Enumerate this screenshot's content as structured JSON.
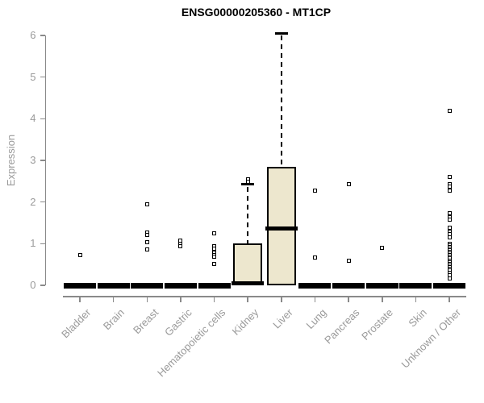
{
  "chart_data": {
    "type": "boxplot",
    "title": "ENSG00000205360 - MT1CP",
    "xlabel": "",
    "ylabel": "Expression",
    "ylim": [
      0,
      6
    ],
    "yticks": [
      0,
      1,
      2,
      3,
      4,
      5,
      6
    ],
    "grid": false,
    "legend": "none",
    "categories": [
      "Bladder",
      "Brain",
      "Breast",
      "Gastric",
      "Hematopoietic cells",
      "Kidney",
      "Liver",
      "Lung",
      "Pancreas",
      "Prostate",
      "Skin",
      "Unknown / Other"
    ],
    "series": [
      {
        "label": "Bladder",
        "stats": {
          "whisker_low": 0,
          "q1": 0,
          "median": 0,
          "q3": 0,
          "whisker_high": 0
        },
        "outliers": [
          0.72
        ]
      },
      {
        "label": "Brain",
        "stats": {
          "whisker_low": 0,
          "q1": 0,
          "median": 0,
          "q3": 0,
          "whisker_high": 0
        },
        "outliers": []
      },
      {
        "label": "Breast",
        "stats": {
          "whisker_low": 0,
          "q1": 0,
          "median": 0,
          "q3": 0,
          "whisker_high": 0
        },
        "outliers": [
          1.95,
          1.27,
          1.21,
          1.04,
          0.86
        ]
      },
      {
        "label": "Gastric",
        "stats": {
          "whisker_low": 0,
          "q1": 0,
          "median": 0,
          "q3": 0,
          "whisker_high": 0
        },
        "outliers": [
          1.07,
          1.0,
          0.94
        ]
      },
      {
        "label": "Hematopoietic cells",
        "stats": {
          "whisker_low": 0,
          "q1": 0,
          "median": 0,
          "q3": 0,
          "whisker_high": 0
        },
        "outliers": [
          1.25,
          0.93,
          0.88,
          0.78,
          0.73,
          0.68,
          0.52
        ]
      },
      {
        "label": "Kidney",
        "stats": {
          "whisker_low": 0,
          "q1": 0,
          "median": 0.05,
          "q3": 1.0,
          "whisker_high": 2.42
        },
        "outliers": [
          2.55,
          2.48
        ]
      },
      {
        "label": "Liver",
        "stats": {
          "whisker_low": 0,
          "q1": 0,
          "median": 1.37,
          "q3": 2.85,
          "whisker_high": 6.05
        },
        "outliers": []
      },
      {
        "label": "Lung",
        "stats": {
          "whisker_low": 0,
          "q1": 0,
          "median": 0,
          "q3": 0,
          "whisker_high": 0
        },
        "outliers": [
          2.27,
          0.66
        ]
      },
      {
        "label": "Pancreas",
        "stats": {
          "whisker_low": 0,
          "q1": 0,
          "median": 0,
          "q3": 0,
          "whisker_high": 0
        },
        "outliers": [
          2.42,
          0.6
        ]
      },
      {
        "label": "Prostate",
        "stats": {
          "whisker_low": 0,
          "q1": 0,
          "median": 0,
          "q3": 0,
          "whisker_high": 0
        },
        "outliers": [
          0.9
        ]
      },
      {
        "label": "Skin",
        "stats": {
          "whisker_low": 0,
          "q1": 0,
          "median": 0,
          "q3": 0,
          "whisker_high": 0
        },
        "outliers": []
      },
      {
        "label": "Unknown / Other",
        "stats": {
          "whisker_low": 0,
          "q1": 0,
          "median": 0,
          "q3": 0,
          "whisker_high": 0
        },
        "outliers": [
          4.2,
          2.6,
          2.43,
          2.37,
          2.27,
          1.74,
          1.64,
          1.58,
          1.39,
          1.29,
          1.23,
          1.15,
          1.0,
          0.96,
          0.92,
          0.88,
          0.84,
          0.8,
          0.76,
          0.72,
          0.68,
          0.64,
          0.6,
          0.56,
          0.52,
          0.48,
          0.44,
          0.4,
          0.35,
          0.3,
          0.25,
          0.17
        ]
      }
    ],
    "colors": {
      "box_fill": "#EDE7CE",
      "box_border": "#000000",
      "median": "#000000",
      "whisker": "#000000",
      "outlier_border": "#000000",
      "axis": "#8a8a8a",
      "tick_label": "#9a9a9a",
      "title": "#000000",
      "background": "#FFFFFF"
    }
  }
}
